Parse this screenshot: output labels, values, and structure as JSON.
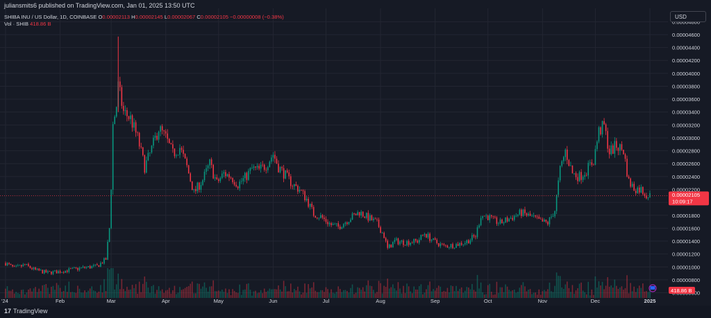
{
  "header": {
    "published": "juliansmits6 published on TradingView.com, Jan 01, 2025 13:50 UTC",
    "symbol": "SHIBA INU / US Dollar, 1D, COINBASE",
    "o_label": "O",
    "o_value": "0.00002113",
    "h_label": "H",
    "h_value": "0.00002145",
    "l_label": "L",
    "l_value": "0.00002067",
    "c_label": "C",
    "c_value": "0.00002105",
    "change": "−0.00000008 (−0.38%)",
    "vol_label": "Vol · SHIB",
    "vol_value": "418.86 B"
  },
  "currency_button": "USD",
  "price_badge": {
    "price": "0.00002105",
    "countdown": "10:09:17"
  },
  "volume_badge": "418.86 B",
  "footer": {
    "brand": "TradingView",
    "brand_mark": "17"
  },
  "colors": {
    "up": "#089981",
    "down": "#f23645",
    "background": "#161a25",
    "grid": "#232632",
    "text": "#d1d4dc"
  },
  "chart_data": {
    "type": "candlestick",
    "title": "SHIBA INU / US Dollar, 1D, COINBASE",
    "y_ticks": [
      "0.00004800",
      "0.00004600",
      "0.00004400",
      "0.00004200",
      "0.00004000",
      "0.00003800",
      "0.00003600",
      "0.00003400",
      "0.00003200",
      "0.00003000",
      "0.00002800",
      "0.00002600",
      "0.00002400",
      "0.00002200",
      "0.00002000",
      "0.00001800",
      "0.00001600",
      "0.00001400",
      "0.00001200",
      "0.00001000",
      "0.00000800",
      "0.00000600"
    ],
    "ylim": [
      5.2e-06,
      4.9e-05
    ],
    "x_ticks": [
      {
        "label": "'24",
        "date": "2024-01-01"
      },
      {
        "label": "Feb",
        "date": "2024-02-01"
      },
      {
        "label": "Mar",
        "date": "2024-03-01"
      },
      {
        "label": "Apr",
        "date": "2024-04-01"
      },
      {
        "label": "May",
        "date": "2024-05-01"
      },
      {
        "label": "Jun",
        "date": "2024-06-01"
      },
      {
        "label": "Jul",
        "date": "2024-07-01"
      },
      {
        "label": "Aug",
        "date": "2024-08-01"
      },
      {
        "label": "Sep",
        "date": "2024-09-01"
      },
      {
        "label": "Oct",
        "date": "2024-10-01"
      },
      {
        "label": "Nov",
        "date": "2024-11-01"
      },
      {
        "label": "Dec",
        "date": "2024-12-01"
      },
      {
        "label": "2025",
        "date": "2025-01-01"
      }
    ],
    "last_price": 2.105e-05,
    "close_path": [
      [
        "2024-01-01",
        1.06e-05
      ],
      [
        "2024-01-06",
        9.8e-06
      ],
      [
        "2024-01-12",
        1.03e-05
      ],
      [
        "2024-01-18",
        9.5e-06
      ],
      [
        "2024-01-25",
        9.1e-06
      ],
      [
        "2024-02-01",
        9.3e-06
      ],
      [
        "2024-02-08",
        9.6e-06
      ],
      [
        "2024-02-15",
        9.9e-06
      ],
      [
        "2024-02-22",
        1.01e-05
      ],
      [
        "2024-02-27",
        1.12e-05
      ],
      [
        "2024-02-29",
        1.6e-05
      ],
      [
        "2024-03-01",
        2.25e-05
      ],
      [
        "2024-03-02",
        3.2e-05
      ],
      [
        "2024-03-04",
        3.5e-05
      ],
      [
        "2024-03-05",
        3.8e-05
      ],
      [
        "2024-03-08",
        3.4e-05
      ],
      [
        "2024-03-12",
        3.3e-05
      ],
      [
        "2024-03-16",
        3e-05
      ],
      [
        "2024-03-20",
        2.55e-05
      ],
      [
        "2024-03-23",
        2.75e-05
      ],
      [
        "2024-03-28",
        3.15e-05
      ],
      [
        "2024-04-01",
        3e-05
      ],
      [
        "2024-04-05",
        2.75e-05
      ],
      [
        "2024-04-09",
        2.85e-05
      ],
      [
        "2024-04-13",
        2.55e-05
      ],
      [
        "2024-04-17",
        2.15e-05
      ],
      [
        "2024-04-22",
        2.35e-05
      ],
      [
        "2024-04-26",
        2.6e-05
      ],
      [
        "2024-04-30",
        2.3e-05
      ],
      [
        "2024-05-04",
        2.45e-05
      ],
      [
        "2024-05-08",
        2.4e-05
      ],
      [
        "2024-05-12",
        2.28e-05
      ],
      [
        "2024-05-16",
        2.38e-05
      ],
      [
        "2024-05-20",
        2.52e-05
      ],
      [
        "2024-05-24",
        2.5e-05
      ],
      [
        "2024-05-28",
        2.58e-05
      ],
      [
        "2024-06-01",
        2.75e-05
      ],
      [
        "2024-06-04",
        2.55e-05
      ],
      [
        "2024-06-08",
        2.42e-05
      ],
      [
        "2024-06-12",
        2.28e-05
      ],
      [
        "2024-06-16",
        2.2e-05
      ],
      [
        "2024-06-20",
        2.05e-05
      ],
      [
        "2024-06-24",
        1.82e-05
      ],
      [
        "2024-06-28",
        1.78e-05
      ],
      [
        "2024-07-04",
        1.65e-05
      ],
      [
        "2024-07-08",
        1.62e-05
      ],
      [
        "2024-07-12",
        1.7e-05
      ],
      [
        "2024-07-16",
        1.78e-05
      ],
      [
        "2024-07-20",
        1.85e-05
      ],
      [
        "2024-07-24",
        1.78e-05
      ],
      [
        "2024-07-30",
        1.68e-05
      ],
      [
        "2024-08-03",
        1.48e-05
      ],
      [
        "2024-08-05",
        1.28e-05
      ],
      [
        "2024-08-09",
        1.4e-05
      ],
      [
        "2024-08-15",
        1.38e-05
      ],
      [
        "2024-08-22",
        1.4e-05
      ],
      [
        "2024-08-26",
        1.52e-05
      ],
      [
        "2024-08-31",
        1.4e-05
      ],
      [
        "2024-09-06",
        1.32e-05
      ],
      [
        "2024-09-12",
        1.34e-05
      ],
      [
        "2024-09-18",
        1.38e-05
      ],
      [
        "2024-09-24",
        1.48e-05
      ],
      [
        "2024-09-27",
        1.8e-05
      ],
      [
        "2024-10-01",
        1.78e-05
      ],
      [
        "2024-10-04",
        1.72e-05
      ],
      [
        "2024-10-08",
        1.68e-05
      ],
      [
        "2024-10-14",
        1.76e-05
      ],
      [
        "2024-10-20",
        1.84e-05
      ],
      [
        "2024-10-27",
        1.76e-05
      ],
      [
        "2024-10-31",
        1.7e-05
      ],
      [
        "2024-11-04",
        1.68e-05
      ],
      [
        "2024-11-08",
        1.88e-05
      ],
      [
        "2024-11-11",
        2.5e-05
      ],
      [
        "2024-11-14",
        2.8e-05
      ],
      [
        "2024-11-18",
        2.45e-05
      ],
      [
        "2024-11-22",
        2.4e-05
      ],
      [
        "2024-11-26",
        2.5e-05
      ],
      [
        "2024-11-30",
        2.65e-05
      ],
      [
        "2024-12-03",
        3.1e-05
      ],
      [
        "2024-12-06",
        3.18e-05
      ],
      [
        "2024-12-09",
        2.78e-05
      ],
      [
        "2024-12-13",
        2.88e-05
      ],
      [
        "2024-12-17",
        2.8e-05
      ],
      [
        "2024-12-20",
        2.32e-05
      ],
      [
        "2024-12-23",
        2.22e-05
      ],
      [
        "2024-12-27",
        2.2e-05
      ],
      [
        "2024-12-31",
        2.1e-05
      ],
      [
        "2025-01-01",
        2.1e-05
      ]
    ]
  }
}
